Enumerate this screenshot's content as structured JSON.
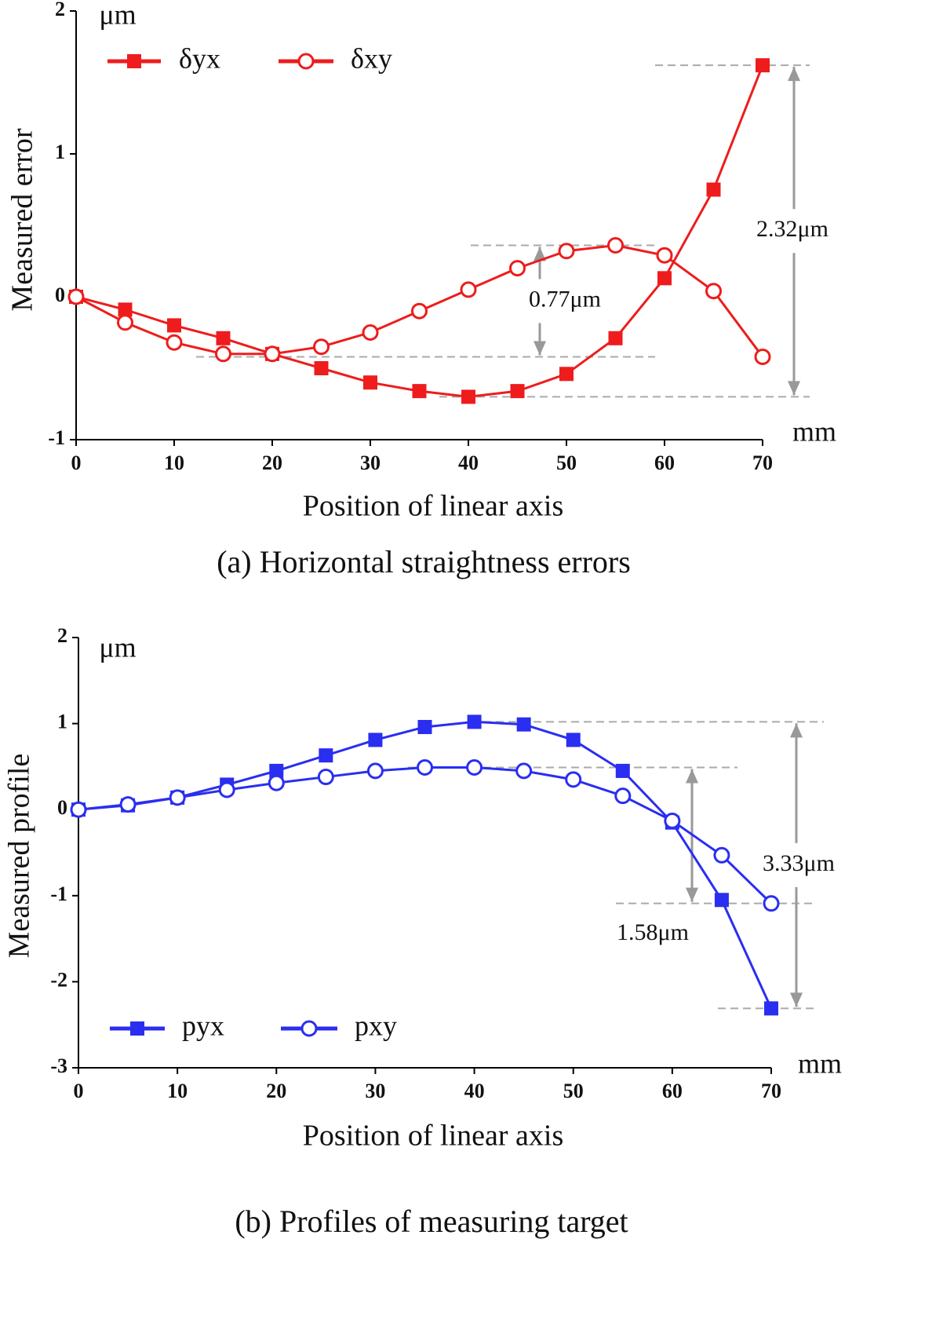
{
  "chart_data": [
    {
      "type": "line",
      "ylabel": "Measured error",
      "xlabel": "Position of linear axis",
      "y_unit": "μm",
      "x_unit": "mm",
      "caption": "(a) Horizontal straightness errors",
      "x": [
        0,
        5,
        10,
        15,
        20,
        25,
        30,
        35,
        40,
        45,
        50,
        55,
        60,
        65,
        70
      ],
      "series": [
        {
          "name": "δyx",
          "color": "#ee1c1c",
          "marker": "square",
          "values": [
            0,
            -0.09,
            -0.2,
            -0.29,
            -0.4,
            -0.5,
            -0.6,
            -0.66,
            -0.7,
            -0.66,
            -0.54,
            -0.29,
            0.13,
            0.75,
            1.62
          ]
        },
        {
          "name": "δxy",
          "color": "#ee1c1c",
          "marker": "circle",
          "values": [
            0,
            -0.18,
            -0.32,
            -0.4,
            -0.4,
            -0.35,
            -0.25,
            -0.1,
            0.05,
            0.2,
            0.32,
            0.36,
            0.29,
            0.04,
            -0.42
          ]
        }
      ],
      "xlim": [
        0,
        70
      ],
      "xticks": [
        0,
        10,
        20,
        30,
        40,
        50,
        60,
        70
      ],
      "ylim": [
        -1,
        2
      ],
      "yticks": [
        -1,
        0,
        1,
        2
      ],
      "legend": "upper left",
      "annotations": [
        "0.77μm",
        "2.32μm"
      ]
    },
    {
      "type": "line",
      "ylabel": "Measured profile",
      "xlabel": "Position of linear axis",
      "y_unit": "μm",
      "x_unit": "mm",
      "caption": "(b) Profiles of measuring target",
      "x": [
        0,
        5,
        10,
        15,
        20,
        25,
        30,
        35,
        40,
        45,
        50,
        55,
        60,
        65,
        70
      ],
      "series": [
        {
          "name": "pyx",
          "color": "#2a2ef0",
          "marker": "square",
          "values": [
            0,
            0.05,
            0.14,
            0.29,
            0.45,
            0.63,
            0.81,
            0.96,
            1.02,
            0.99,
            0.81,
            0.45,
            -0.15,
            -1.05,
            -2.31
          ]
        },
        {
          "name": "pxy",
          "color": "#2a2ef0",
          "marker": "circle",
          "values": [
            0,
            0.06,
            0.14,
            0.23,
            0.31,
            0.38,
            0.45,
            0.49,
            0.49,
            0.45,
            0.35,
            0.16,
            -0.13,
            -0.53,
            -1.09
          ]
        }
      ],
      "xlim": [
        0,
        70
      ],
      "xticks": [
        0,
        10,
        20,
        30,
        40,
        50,
        60,
        70
      ],
      "ylim": [
        -3,
        2
      ],
      "yticks": [
        -3,
        -2,
        -1,
        0,
        1,
        2
      ],
      "legend": "lower left",
      "annotations": [
        "3.33μm",
        "1.58μm"
      ]
    }
  ]
}
